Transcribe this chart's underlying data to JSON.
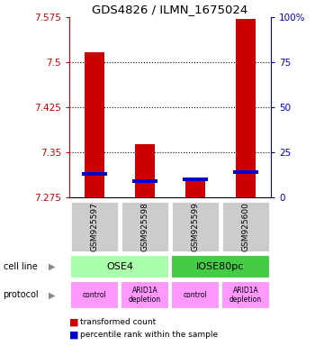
{
  "title": "GDS4826 / ILMN_1675024",
  "samples": [
    "GSM925597",
    "GSM925598",
    "GSM925599",
    "GSM925600"
  ],
  "transformed_counts": [
    7.516,
    7.363,
    7.308,
    7.573
  ],
  "percentile_ranks": [
    13,
    9,
    10,
    14
  ],
  "y_min": 7.275,
  "y_max": 7.575,
  "y_ticks": [
    7.275,
    7.35,
    7.425,
    7.5,
    7.575
  ],
  "y_tick_labels": [
    "7.275",
    "7.35",
    "7.425",
    "7.5",
    "7.575"
  ],
  "right_y_ticks": [
    0,
    25,
    50,
    75,
    100
  ],
  "right_y_labels": [
    "0",
    "25",
    "50",
    "75",
    "100%"
  ],
  "bar_color_red": "#cc0000",
  "bar_color_blue": "#0000cc",
  "ose4_color": "#aaffaa",
  "iose_color": "#44cc44",
  "protocol_color": "#ff99ff",
  "sample_bg_color": "#cccccc",
  "left_axis_color": "#cc0000",
  "right_axis_color": "#0000cc",
  "protocols": [
    "control",
    "ARID1A\ndepletion",
    "control",
    "ARID1A\ndepletion"
  ],
  "grid_ticks": [
    7.35,
    7.425,
    7.5
  ]
}
